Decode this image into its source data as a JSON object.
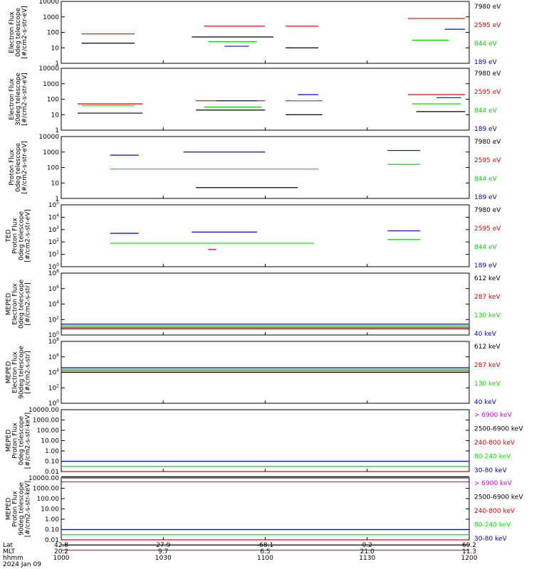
{
  "colors": {
    "black": "#000000",
    "red": "#e00000",
    "green": "#00e000",
    "blue": "#0000e0",
    "magenta": "#e000e0",
    "frame": "#000000"
  },
  "chart_data": [
    {
      "type": "line",
      "log_scale": true,
      "ylabel": [
        "Electron Flux",
        "0deg telescope",
        "[#/cm2-s-str-eV]"
      ],
      "yticks": [
        "10000",
        "1000",
        "100",
        "10",
        "1"
      ],
      "series": [
        {
          "name": "7980 eV",
          "color": "black",
          "segments": [
            [
              0.05,
              0.18,
              1.3
            ],
            [
              0.32,
              0.52,
              1.7
            ],
            [
              0.55,
              0.63,
              1.0
            ]
          ]
        },
        {
          "name": "2595 eV",
          "color": "red",
          "segments": [
            [
              0.05,
              0.18,
              1.9
            ],
            [
              0.35,
              0.5,
              2.4
            ],
            [
              0.55,
              0.63,
              2.4
            ],
            [
              0.85,
              0.99,
              2.9
            ]
          ]
        },
        {
          "name": "844 eV",
          "color": "green",
          "segments": [
            [
              0.36,
              0.48,
              1.4
            ],
            [
              0.86,
              0.95,
              1.5
            ]
          ]
        },
        {
          "name": "189 eV",
          "color": "blue",
          "segments": [
            [
              0.4,
              0.46,
              1.1
            ],
            [
              0.94,
              0.99,
              2.2
            ]
          ]
        }
      ]
    },
    {
      "type": "line",
      "log_scale": true,
      "ylabel": [
        "Electron Flux",
        "30deg telescope",
        "[#/cm2-s-str-eV]"
      ],
      "yticks": [
        "10000",
        "1000",
        "100",
        "10",
        "1"
      ],
      "series": [
        {
          "name": "7980 eV",
          "color": "black",
          "segments": [
            [
              0.04,
              0.2,
              1.1
            ],
            [
              0.33,
              0.5,
              1.3
            ],
            [
              0.55,
              0.64,
              1.0
            ],
            [
              0.87,
              0.99,
              1.2
            ]
          ]
        },
        {
          "name": "2595 eV",
          "color": "red",
          "segments": [
            [
              0.04,
              0.2,
              1.7
            ],
            [
              0.33,
              0.5,
              1.9
            ],
            [
              0.55,
              0.64,
              1.9
            ],
            [
              0.85,
              0.99,
              2.3
            ]
          ]
        },
        {
          "name": "844 eV",
          "color": "green",
          "segments": [
            [
              0.05,
              0.18,
              1.6
            ],
            [
              0.35,
              0.49,
              1.5
            ],
            [
              0.56,
              0.63,
              1.9
            ],
            [
              0.86,
              0.98,
              1.7
            ]
          ]
        },
        {
          "name": "189 eV",
          "color": "blue",
          "segments": [
            [
              0.38,
              0.48,
              1.9
            ],
            [
              0.58,
              0.63,
              2.3
            ],
            [
              0.92,
              0.98,
              2.1
            ]
          ]
        }
      ]
    },
    {
      "type": "line",
      "log_scale": true,
      "ylabel": [
        "Proton Flux",
        "0deg telescope",
        "[#/cm2-s-str-eV]"
      ],
      "yticks": [
        "10000",
        "1000",
        "100",
        "10",
        "1"
      ],
      "series": [
        {
          "name": "7980 eV",
          "color": "black",
          "segments": [
            [
              0.33,
              0.58,
              0.7
            ]
          ]
        },
        {
          "name": "2595 eV",
          "color": "red",
          "segments": []
        },
        {
          "name": "844 eV",
          "color": "green",
          "segments": [
            [
              0.12,
              0.63,
              1.9
            ],
            [
              0.8,
              0.88,
              2.2
            ]
          ]
        },
        {
          "name": "189 eV",
          "color": "blue",
          "segments": [
            [
              0.12,
              0.19,
              2.8
            ],
            [
              0.3,
              0.5,
              3.0
            ],
            [
              0.8,
              0.88,
              3.1
            ]
          ]
        }
      ]
    },
    {
      "type": "line",
      "log_scale": true,
      "ylabel": [
        "TED",
        "Proton Flux",
        "0deg telescope",
        "[#/cm2-s-str-eV]"
      ],
      "yticks": [
        "10^5",
        "10^4",
        "10^3",
        "10^2",
        "10^1",
        "10^0"
      ],
      "series": [
        {
          "name": "7980 eV",
          "color": "black",
          "segments": []
        },
        {
          "name": "2595 eV",
          "color": "red",
          "segments": [
            [
              0.36,
              0.38,
              1.4
            ]
          ]
        },
        {
          "name": "844 eV",
          "color": "green",
          "segments": [
            [
              0.12,
              0.62,
              1.9
            ],
            [
              0.8,
              0.88,
              2.2
            ]
          ]
        },
        {
          "name": "189 eV",
          "color": "blue",
          "segments": [
            [
              0.12,
              0.19,
              2.7
            ],
            [
              0.32,
              0.48,
              2.8
            ],
            [
              0.8,
              0.88,
              2.9
            ]
          ]
        }
      ]
    },
    {
      "type": "line",
      "log_scale": true,
      "ylabel": [
        "MEPED",
        "Electron Flux",
        "0deg telescope",
        "[#/cm2-s-str]"
      ],
      "yticks": [
        "10^8",
        "10^6",
        "10^4",
        "10^2",
        "10^0"
      ],
      "series": [
        {
          "name": "612 keV",
          "color": "black",
          "segments": [
            [
              0.0,
              1.0,
              0.4
            ]
          ]
        },
        {
          "name": "287 keV",
          "color": "red",
          "segments": [
            [
              0.0,
              1.0,
              0.5
            ]
          ]
        },
        {
          "name": "130 keV",
          "color": "green",
          "segments": [
            [
              0.0,
              1.0,
              0.6
            ]
          ]
        },
        {
          "name": "40 keV",
          "color": "blue",
          "segments": [
            [
              0.0,
              1.0,
              0.7
            ]
          ]
        }
      ]
    },
    {
      "type": "line",
      "log_scale": true,
      "ylabel": [
        "MEPED",
        "Electron Flux",
        "90deg telescope",
        "[#/cm2-s-str]"
      ],
      "yticks": [
        "10^8",
        "10^6",
        "10^4",
        "10^2",
        "10^0"
      ],
      "series": [
        {
          "name": "612 keV",
          "color": "black",
          "segments": [
            [
              0.0,
              1.0,
              2.0
            ]
          ]
        },
        {
          "name": "287 keV",
          "color": "red",
          "segments": [
            [
              0.0,
              1.0,
              2.1
            ]
          ]
        },
        {
          "name": "130 keV",
          "color": "green",
          "segments": [
            [
              0.0,
              1.0,
              2.2
            ]
          ]
        },
        {
          "name": "40 keV",
          "color": "blue",
          "segments": [
            [
              0.0,
              1.0,
              2.3
            ]
          ]
        }
      ]
    },
    {
      "type": "line",
      "log_scale": true,
      "ylabel": [
        "MEPED",
        "Proton Flux",
        "0deg telescope",
        "[#/cm2-s-str-keV]"
      ],
      "yticks": [
        "10000.00",
        "1000.00",
        "100.00",
        "10.00",
        "1.00",
        "0.10",
        "0.01"
      ],
      "series": [
        {
          "name": "> 6900 keV",
          "color": "magenta",
          "segments": [
            [
              0.0,
              1.0,
              -1.0
            ]
          ]
        },
        {
          "name": "2500-6900 keV",
          "color": "black",
          "segments": [
            [
              0.0,
              1.0,
              -0.5
            ]
          ]
        },
        {
          "name": "240-800 keV",
          "color": "red",
          "segments": [
            [
              0.0,
              1.0,
              0.0
            ]
          ]
        },
        {
          "name": "80-240 keV",
          "color": "green",
          "segments": [
            [
              0.0,
              1.0,
              0.5
            ]
          ]
        },
        {
          "name": "30-80 keV",
          "color": "blue",
          "segments": [
            [
              0.0,
              1.0,
              1.0
            ]
          ]
        }
      ]
    },
    {
      "type": "line",
      "log_scale": true,
      "ylabel": [
        "MEPED",
        "Proton Flux",
        "90deg telescope",
        "[#/cm2-s-str-keV]"
      ],
      "yticks": [
        "10000.00",
        "1000.00",
        "100.00",
        "10.00",
        "1.00",
        "0.10",
        "0.01"
      ],
      "series": [
        {
          "name": "> 6900 keV",
          "color": "magenta",
          "segments": [
            [
              0.0,
              1.0,
              -1.0
            ]
          ]
        },
        {
          "name": "2500-6900 keV",
          "color": "black",
          "segments": [
            [
              0.0,
              1.0,
              -0.5
            ]
          ]
        },
        {
          "name": "240-800 keV",
          "color": "red",
          "segments": [
            [
              0.0,
              1.0,
              0.0
            ]
          ]
        },
        {
          "name": "80-240 keV",
          "color": "green",
          "segments": [
            [
              0.0,
              1.0,
              0.5
            ]
          ]
        },
        {
          "name": "30-80 keV",
          "color": "blue",
          "segments": [
            [
              0.0,
              1.0,
              1.0
            ]
          ]
        }
      ]
    }
  ],
  "footer": {
    "row_labels": [
      "Lat",
      "MLT",
      "hhmm",
      "2024 Jan 09"
    ],
    "columns": [
      {
        "lat": "42.8",
        "mlt": "20.2",
        "hhmm": "1000"
      },
      {
        "lat": "27.9",
        "mlt": "9.7",
        "hhmm": "1030"
      },
      {
        "lat": "-68.1",
        "mlt": "6.5",
        "hhmm": "1100"
      },
      {
        "lat": "0.2",
        "mlt": "21.0",
        "hhmm": "1130"
      },
      {
        "lat": "69.2",
        "mlt": "11.3",
        "hhmm": "1200"
      }
    ]
  }
}
